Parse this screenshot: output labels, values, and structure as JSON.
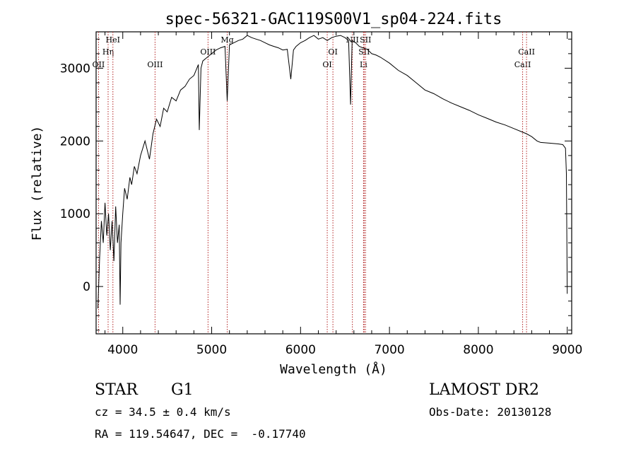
{
  "chart_data": {
    "type": "line",
    "title": "spec-56321-GAC119S00V1_sp04-224.fits",
    "xlabel": "Wavelength (Å)",
    "ylabel": "Flux (relative)",
    "xlim": [
      3700,
      9050
    ],
    "ylim": [
      -650,
      3500
    ],
    "xticks": [
      4000,
      5000,
      6000,
      7000,
      8000,
      9000
    ],
    "yticks": [
      0,
      1000,
      2000,
      3000
    ],
    "grid": false,
    "line_color": "#000000",
    "marker_color": "#b22222",
    "series": [
      {
        "x": [
          3720,
          3740,
          3760,
          3780,
          3800,
          3820,
          3840,
          3860,
          3880,
          3900,
          3920,
          3940,
          3960,
          3970,
          3980,
          4000,
          4020,
          4050,
          4080,
          4100,
          4130,
          4160,
          4200,
          4250,
          4300,
          4340,
          4380,
          4420,
          4460,
          4500,
          4550,
          4600,
          4650,
          4700,
          4750,
          4800,
          4850,
          4861,
          4880,
          4900,
          4950,
          5000,
          5050,
          5100,
          5150,
          5175,
          5200,
          5250,
          5300,
          5350,
          5400,
          5450,
          5500,
          5550,
          5600,
          5650,
          5700,
          5750,
          5800,
          5850,
          5890,
          5920,
          5950,
          6000,
          6050,
          6100,
          6150,
          6200,
          6250,
          6300,
          6350,
          6400,
          6450,
          6500,
          6540,
          6563,
          6580,
          6620,
          6660,
          6700,
          6750,
          6800,
          6850,
          6900,
          7000,
          7100,
          7200,
          7300,
          7400,
          7500,
          7600,
          7700,
          7800,
          7900,
          8000,
          8100,
          8200,
          8300,
          8400,
          8500,
          8540,
          8600,
          8660,
          8700,
          8800,
          8900,
          8950,
          8980,
          8990,
          9000
        ],
        "y": [
          -300,
          400,
          900,
          600,
          1150,
          700,
          1000,
          500,
          900,
          350,
          1100,
          600,
          850,
          -250,
          600,
          1000,
          1350,
          1200,
          1500,
          1400,
          1650,
          1550,
          1800,
          2000,
          1750,
          2100,
          2300,
          2200,
          2450,
          2400,
          2600,
          2550,
          2700,
          2750,
          2850,
          2900,
          3050,
          2150,
          3000,
          3100,
          3150,
          3200,
          3250,
          3280,
          3300,
          2550,
          3320,
          3350,
          3380,
          3400,
          3450,
          3420,
          3400,
          3380,
          3350,
          3320,
          3300,
          3280,
          3250,
          3260,
          2850,
          3250,
          3300,
          3350,
          3380,
          3420,
          3450,
          3400,
          3420,
          3380,
          3420,
          3440,
          3450,
          3420,
          3380,
          2500,
          3380,
          3350,
          3300,
          3280,
          3260,
          3200,
          3180,
          3150,
          3070,
          2970,
          2900,
          2800,
          2700,
          2650,
          2580,
          2520,
          2470,
          2420,
          2360,
          2310,
          2260,
          2220,
          2170,
          2120,
          2100,
          2060,
          2000,
          1980,
          1970,
          1960,
          1950,
          1900,
          1550,
          -100
        ]
      }
    ],
    "line_markers": [
      {
        "wavelength": 3727,
        "label": "OII",
        "row": 3
      },
      {
        "wavelength": 3835,
        "label": "Hη",
        "row": 2
      },
      {
        "wavelength": 3889,
        "label": "HeI",
        "row": 1
      },
      {
        "wavelength": 4363,
        "label": "OIII",
        "row": 3
      },
      {
        "wavelength": 4959,
        "label": "OIII",
        "row": 2
      },
      {
        "wavelength": 5175,
        "label": "Mg",
        "row": 1
      },
      {
        "wavelength": 6300,
        "label": "OI",
        "row": 3
      },
      {
        "wavelength": 6364,
        "label": "OI",
        "row": 2
      },
      {
        "wavelength": 6583,
        "label": "NII",
        "row": 1
      },
      {
        "wavelength": 6708,
        "label": "Li",
        "row": 3
      },
      {
        "wavelength": 6716,
        "label": "SII",
        "row": 2
      },
      {
        "wavelength": 6731,
        "label": "SII",
        "row": 1
      },
      {
        "wavelength": 8498,
        "label": "CaII",
        "row": 3
      },
      {
        "wavelength": 8542,
        "label": "CaII",
        "row": 2
      }
    ]
  },
  "info": {
    "class_label": "STAR",
    "subclass_label": "G1",
    "survey_label": "LAMOST DR2",
    "cz_text": "cz = 34.5 ± 0.4 km/s",
    "obs_date_text": "Obs-Date: 20130128",
    "radec_text": "RA = 119.54647, DEC =  -0.17740"
  }
}
